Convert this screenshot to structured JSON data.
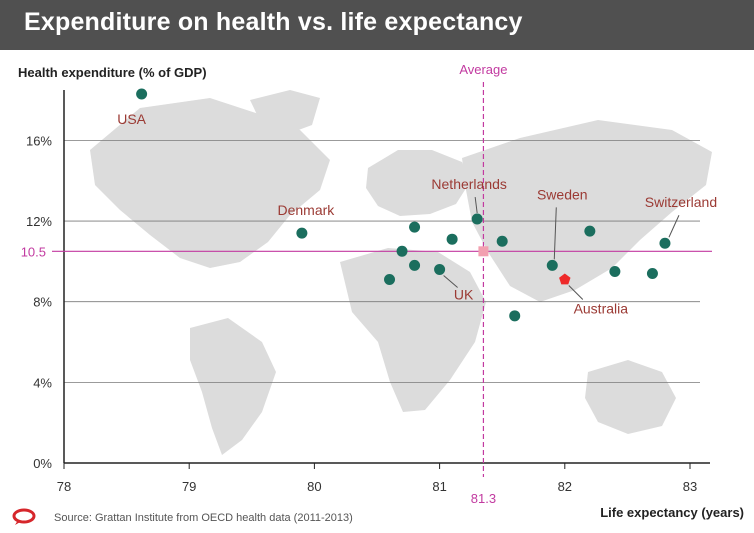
{
  "header": {
    "title": "Expenditure on health vs. life expectancy"
  },
  "footer": {
    "source": "Source: Grattan Institute from OECD health data (2011-2013)"
  },
  "colors": {
    "point": "#1b6e5e",
    "highlight": "#ee2a2a",
    "average": "#c23aa0",
    "label": "#9b3a34",
    "grid": "#7a7a7a",
    "map": "#dcdcdc",
    "title_bar": "#505050",
    "logo": "#d6262b"
  },
  "chart_data": {
    "type": "scatter",
    "title": "Expenditure on health vs. life expectancy",
    "xlabel": "Life expectancy (years)",
    "ylabel": "Health expenditure (% of GDP)",
    "xlim": [
      78,
      83
    ],
    "ylim": [
      0,
      18.5
    ],
    "x_ticks": [
      "78",
      "79",
      "80",
      "81",
      "82",
      "83"
    ],
    "y_ticks": [
      {
        "value": 0,
        "label": "0%"
      },
      {
        "value": 4,
        "label": "4%"
      },
      {
        "value": 8,
        "label": "8%"
      },
      {
        "value": 12,
        "label": "12%"
      },
      {
        "value": 16,
        "label": "16%"
      }
    ],
    "grid": "horizontal",
    "average": {
      "label": "Average",
      "x": 81.35,
      "x_label": "81.3",
      "y": 10.5,
      "y_label": "10.5"
    },
    "points": [
      {
        "x": 78.62,
        "y": 18.3,
        "label": "USA"
      },
      {
        "x": 79.9,
        "y": 11.4,
        "label": "Denmark"
      },
      {
        "x": 81.3,
        "y": 12.1,
        "label": "Netherlands"
      },
      {
        "x": 81.9,
        "y": 9.8,
        "label": "Sweden"
      },
      {
        "x": 82.8,
        "y": 10.9,
        "label": "Switzerland"
      },
      {
        "x": 81.0,
        "y": 9.6,
        "label": "UK"
      },
      {
        "x": 82.0,
        "y": 9.1,
        "label": "Australia",
        "highlight": true
      },
      {
        "x": 80.6,
        "y": 9.1
      },
      {
        "x": 80.7,
        "y": 10.5
      },
      {
        "x": 80.8,
        "y": 11.7
      },
      {
        "x": 80.8,
        "y": 9.8
      },
      {
        "x": 81.1,
        "y": 11.1
      },
      {
        "x": 81.5,
        "y": 11.0
      },
      {
        "x": 81.6,
        "y": 7.3
      },
      {
        "x": 82.2,
        "y": 11.5
      },
      {
        "x": 82.4,
        "y": 9.5
      },
      {
        "x": 82.7,
        "y": 9.4
      }
    ]
  }
}
